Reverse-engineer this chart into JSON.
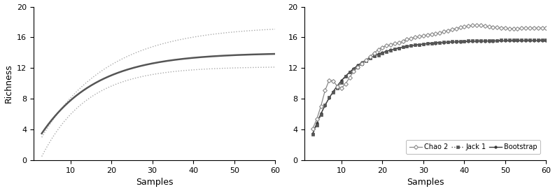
{
  "left_panel": {
    "xlabel": "Samples",
    "ylabel": "Richness",
    "xlim": [
      1,
      60
    ],
    "ylim": [
      0,
      20
    ],
    "xticks": [
      10,
      20,
      30,
      40,
      50,
      60
    ],
    "yticks": [
      0,
      4,
      8,
      12,
      16,
      20
    ],
    "line_color": "#555555",
    "ci_color": "#aaaaaa",
    "main_asym": 14.0,
    "main_k": 0.075,
    "upper_asym": 17.5,
    "upper_k": 0.062,
    "lower_asym": 12.2,
    "lower_k": 0.09,
    "x_start": 3.0
  },
  "right_panel": {
    "xlabel": "Samples",
    "xlim": [
      1,
      60
    ],
    "ylim": [
      0,
      20
    ],
    "xticks": [
      10,
      20,
      30,
      40,
      50,
      60
    ],
    "yticks": [
      0,
      4,
      8,
      12,
      16,
      20
    ],
    "chao2_color": "#888888",
    "jack1_color": "#555555",
    "bootstrap_color": "#333333"
  },
  "figure_bg": "#ffffff"
}
